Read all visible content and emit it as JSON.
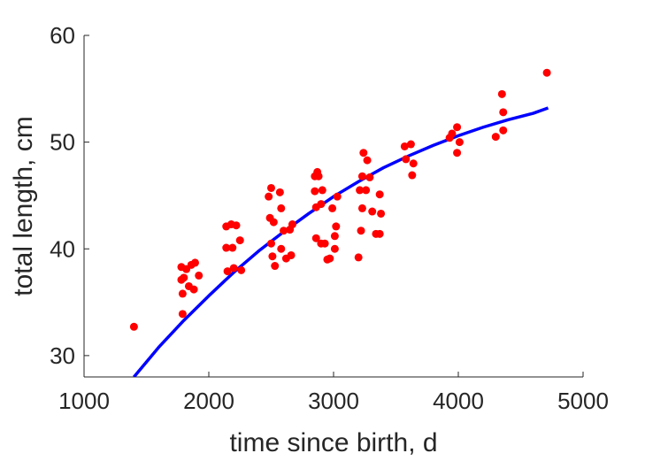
{
  "chart_data": {
    "type": "scatter",
    "xlabel": "time since birth, d",
    "ylabel": "total length, cm",
    "xlim": [
      1000,
      5000
    ],
    "ylim": [
      28,
      60
    ],
    "xticks": [
      1000,
      2000,
      3000,
      4000,
      5000
    ],
    "yticks": [
      30,
      40,
      50,
      60
    ],
    "grid": false,
    "colors": {
      "points": "#ff0000",
      "fit": "#0000ff",
      "axes": "#262626"
    },
    "series": [
      {
        "kind": "scatter",
        "x": [
          1400,
          1780,
          1780,
          1790,
          1790,
          1800,
          1820,
          1840,
          1860,
          1880,
          1890,
          1920,
          2140,
          2140,
          2150,
          2180,
          2190,
          2200,
          2220,
          2250,
          2260,
          2480,
          2490,
          2500,
          2500,
          2510,
          2520,
          2530,
          2570,
          2580,
          2580,
          2600,
          2620,
          2650,
          2660,
          2670,
          2850,
          2850,
          2860,
          2860,
          2870,
          2880,
          2900,
          2900,
          2910,
          2930,
          2950,
          2970,
          2990,
          3010,
          3010,
          3020,
          3030,
          3200,
          3210,
          3220,
          3230,
          3230,
          3240,
          3260,
          3270,
          3290,
          3310,
          3340,
          3370,
          3370,
          3380,
          3570,
          3580,
          3620,
          3630,
          3640,
          3930,
          3950,
          3990,
          3990,
          4010,
          4300,
          4350,
          4360,
          4360,
          4710
        ],
        "y": [
          32.7,
          38.3,
          37.1,
          35.8,
          33.9,
          37.3,
          38.1,
          36.5,
          38.5,
          36.2,
          38.7,
          37.5,
          42.1,
          40.1,
          37.9,
          42.3,
          40.1,
          38.2,
          42.2,
          40.8,
          38.0,
          44.9,
          42.9,
          45.7,
          40.5,
          39.3,
          42.5,
          38.4,
          45.3,
          43.8,
          40.0,
          41.7,
          39.1,
          41.8,
          39.4,
          42.3,
          46.8,
          45.4,
          43.9,
          41.0,
          47.2,
          46.8,
          40.5,
          44.2,
          45.5,
          40.5,
          39.0,
          39.1,
          43.8,
          41.2,
          40.0,
          42.1,
          44.9,
          39.2,
          45.5,
          41.7,
          43.8,
          46.8,
          49.0,
          45.5,
          48.3,
          46.7,
          43.5,
          41.4,
          41.4,
          45.1,
          43.3,
          49.6,
          48.4,
          49.8,
          46.9,
          48.0,
          50.4,
          50.8,
          51.4,
          49.0,
          50.0,
          50.5,
          54.5,
          52.8,
          51.1,
          56.5
        ]
      },
      {
        "kind": "line",
        "x": [
          1400,
          1600,
          1800,
          2000,
          2200,
          2400,
          2600,
          2800,
          3000,
          3200,
          3400,
          3600,
          3800,
          4000,
          4200,
          4400,
          4600,
          4720
        ],
        "y": [
          28.0,
          30.8,
          33.3,
          35.6,
          37.8,
          39.8,
          41.6,
          43.3,
          44.9,
          46.3,
          47.6,
          48.7,
          49.7,
          50.6,
          51.4,
          52.1,
          52.7,
          53.2
        ]
      }
    ]
  }
}
